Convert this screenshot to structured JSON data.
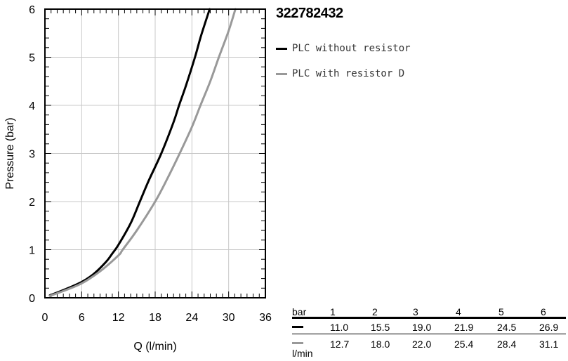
{
  "chart_data": {
    "type": "line",
    "title": "322782432",
    "xlabel": "Q (l/min)",
    "ylabel": "Pressure (bar)",
    "xlim": [
      0,
      36
    ],
    "ylim": [
      0,
      6
    ],
    "x_ticks": [
      0,
      6,
      12,
      18,
      24,
      30,
      36
    ],
    "y_ticks": [
      0,
      1,
      2,
      3,
      4,
      5,
      6
    ],
    "grid": true,
    "legend_position": "right",
    "series": [
      {
        "name": "PLC without resistor",
        "color": "#000000",
        "x": [
          0.8,
          3,
          6,
          8,
          10,
          11,
          12,
          14,
          15.5,
          17,
          19,
          21,
          21.9,
          23,
          24.5,
          25.5,
          26.9
        ],
        "y": [
          0.05,
          0.16,
          0.33,
          0.5,
          0.75,
          0.92,
          1.1,
          1.55,
          2.0,
          2.45,
          3.0,
          3.65,
          4.0,
          4.4,
          5.0,
          5.45,
          6.0
        ]
      },
      {
        "name": "PLC with resistor D",
        "color": "#999999",
        "x": [
          0.8,
          3,
          6,
          9,
          12,
          12.7,
          15,
          18,
          20,
          22,
          24,
          25.4,
          27,
          28.4,
          30,
          31.1
        ],
        "y": [
          0.04,
          0.14,
          0.3,
          0.55,
          0.88,
          1.0,
          1.4,
          2.0,
          2.48,
          3.0,
          3.55,
          4.0,
          4.5,
          5.0,
          5.55,
          6.0
        ]
      }
    ]
  },
  "table": {
    "bar_label": "bar",
    "unit_label": "l/min",
    "bar_values": [
      "1",
      "2",
      "3",
      "4",
      "5",
      "6"
    ],
    "rows": [
      {
        "color": "#000000",
        "values": [
          "11.0",
          "15.5",
          "19.0",
          "21.9",
          "24.5",
          "26.9"
        ]
      },
      {
        "color": "#999999",
        "values": [
          "12.7",
          "18.0",
          "22.0",
          "25.4",
          "28.4",
          "31.1"
        ]
      }
    ]
  }
}
